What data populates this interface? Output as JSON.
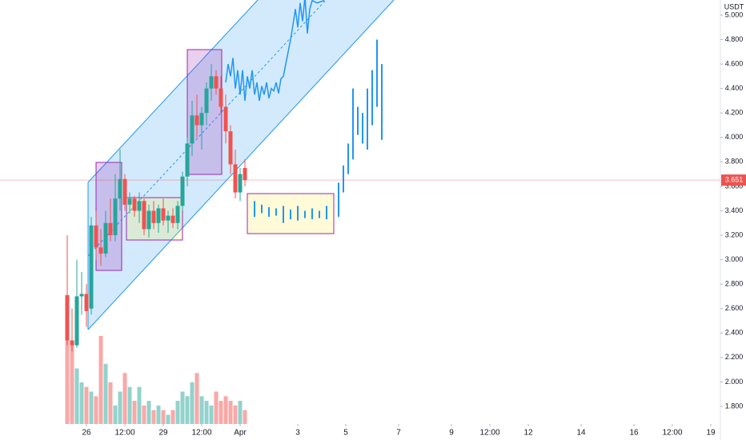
{
  "chart_data": {
    "type": "candlestick",
    "currency": "USDT",
    "last_price": 3.651,
    "ylim": [
      1.656,
      5.124
    ],
    "yticks": [
      {
        "value": 5,
        "label": "5.000"
      },
      {
        "value": 4.8,
        "label": "4.800"
      },
      {
        "value": 4.6,
        "label": "4.600"
      },
      {
        "value": 4.4,
        "label": "4.400"
      },
      {
        "value": 4.2,
        "label": "4.200"
      },
      {
        "value": 4,
        "label": "4.000"
      },
      {
        "value": 3.8,
        "label": "3.800"
      },
      {
        "value": 3.6,
        "label": "3.600"
      },
      {
        "value": 3.4,
        "label": "3.400"
      },
      {
        "value": 3.2,
        "label": "3.200"
      },
      {
        "value": 3,
        "label": "3.000"
      },
      {
        "value": 2.8,
        "label": "2.800"
      },
      {
        "value": 2.6,
        "label": "2.600"
      },
      {
        "value": 2.4,
        "label": "2.400"
      },
      {
        "value": 2.2,
        "label": "2.200"
      },
      {
        "value": 2,
        "label": "2.000"
      },
      {
        "value": 1.8,
        "label": "1.800"
      }
    ],
    "xlim": [
      0,
      150
    ],
    "xticks": [
      {
        "value": 18,
        "label": "26"
      },
      {
        "value": 26,
        "label": "12:00"
      },
      {
        "value": 34,
        "label": "29"
      },
      {
        "value": 42,
        "label": "12:00"
      },
      {
        "value": 50,
        "label": "Apr"
      },
      {
        "value": 62,
        "label": "3"
      },
      {
        "value": 72,
        "label": "5"
      },
      {
        "value": 83,
        "label": "7"
      },
      {
        "value": 94,
        "label": "9"
      },
      {
        "value": 102,
        "label": "12:00"
      },
      {
        "value": 110,
        "label": "12"
      },
      {
        "value": 121,
        "label": "14"
      },
      {
        "value": 132,
        "label": "16"
      },
      {
        "value": 140,
        "label": "12:00"
      },
      {
        "value": 148,
        "label": "19"
      }
    ],
    "up_color": "#26a69a",
    "down_color": "#ef5350",
    "x": [
      14,
      15,
      16,
      17,
      18,
      19,
      20,
      21,
      22,
      23,
      24,
      25,
      26,
      27,
      28,
      29,
      30,
      31,
      32,
      33,
      34,
      35,
      36,
      37,
      38,
      39,
      40,
      41,
      42,
      43,
      44,
      45,
      46,
      47,
      48,
      49,
      50,
      51
    ],
    "ohlc": [
      [
        2.71,
        3.2,
        2.3,
        2.34
      ],
      [
        2.34,
        2.6,
        2.25,
        2.3
      ],
      [
        2.3,
        3.0,
        2.28,
        2.7
      ],
      [
        2.7,
        2.9,
        2.55,
        2.72
      ],
      [
        2.72,
        2.8,
        2.45,
        2.58
      ],
      [
        2.6,
        3.35,
        2.55,
        3.28
      ],
      [
        3.28,
        3.4,
        3.0,
        3.1
      ],
      [
        3.1,
        3.25,
        2.95,
        3.05
      ],
      [
        3.05,
        3.4,
        3.02,
        3.3
      ],
      [
        3.3,
        3.5,
        3.15,
        3.2
      ],
      [
        3.2,
        3.7,
        3.15,
        3.5
      ],
      [
        3.5,
        3.9,
        3.4,
        3.66
      ],
      [
        3.66,
        3.7,
        3.4,
        3.45
      ],
      [
        3.45,
        3.55,
        3.38,
        3.5
      ],
      [
        3.5,
        3.52,
        3.35,
        3.4
      ],
      [
        3.4,
        3.55,
        3.3,
        3.48
      ],
      [
        3.48,
        3.5,
        3.2,
        3.25
      ],
      [
        3.25,
        3.45,
        3.18,
        3.4
      ],
      [
        3.4,
        3.48,
        3.25,
        3.3
      ],
      [
        3.3,
        3.45,
        3.22,
        3.42
      ],
      [
        3.42,
        3.5,
        3.28,
        3.32
      ],
      [
        3.32,
        3.4,
        3.22,
        3.36
      ],
      [
        3.36,
        3.42,
        3.26,
        3.3
      ],
      [
        3.3,
        3.48,
        3.25,
        3.44
      ],
      [
        3.44,
        3.72,
        3.4,
        3.68
      ],
      [
        3.68,
        4.0,
        3.6,
        3.95
      ],
      [
        3.95,
        4.3,
        3.85,
        4.18
      ],
      [
        4.18,
        4.35,
        4.0,
        4.1
      ],
      [
        4.1,
        4.25,
        3.9,
        4.2
      ],
      [
        4.2,
        4.45,
        4.1,
        4.4
      ],
      [
        4.4,
        4.6,
        4.3,
        4.5
      ],
      [
        4.5,
        4.55,
        4.35,
        4.4
      ],
      [
        4.4,
        4.5,
        4.2,
        4.25
      ],
      [
        4.25,
        4.35,
        3.95,
        4.05
      ],
      [
        4.05,
        4.1,
        3.7,
        3.78
      ],
      [
        3.78,
        3.9,
        3.5,
        3.55
      ],
      [
        3.55,
        3.75,
        3.48,
        3.7
      ],
      [
        3.75,
        3.82,
        3.6,
        3.651
      ]
    ],
    "volume": [
      95,
      85,
      60,
      45,
      40,
      35,
      30,
      95,
      65,
      45,
      20,
      35,
      55,
      40,
      25,
      40,
      20,
      25,
      15,
      20,
      15,
      10,
      15,
      25,
      35,
      30,
      45,
      55,
      30,
      25,
      20,
      35,
      25,
      30,
      25,
      20,
      25,
      15
    ],
    "projection": {
      "color": "#2196f3",
      "x": [
        53,
        54.5,
        56,
        57.5,
        59,
        60.5,
        62,
        63.5,
        65,
        66.5,
        68,
        70.5,
        71.5,
        72.5,
        73.5,
        74.5,
        75.5,
        76.5,
        77.5,
        78.5,
        79.5
      ],
      "low": [
        3.35,
        3.38,
        3.35,
        3.36,
        3.3,
        3.33,
        3.32,
        3.34,
        3.33,
        3.34,
        3.33,
        3.35,
        3.55,
        3.7,
        3.82,
        4.02,
        3.95,
        3.9,
        4.1,
        4.25,
        3.98
      ],
      "high": [
        3.48,
        3.45,
        3.43,
        3.42,
        3.44,
        3.41,
        3.44,
        3.4,
        3.42,
        3.4,
        3.44,
        3.63,
        3.77,
        3.95,
        4.4,
        4.25,
        4.2,
        4.4,
        4.55,
        4.8,
        4.6
      ]
    },
    "path_line": {
      "color": "#2196f3",
      "x": [
        47,
        47.5,
        48,
        48.5,
        49,
        49.5,
        50,
        50.5,
        51,
        51.5,
        52,
        52.5,
        53,
        53.5,
        54,
        54.5,
        55,
        55.5,
        56,
        56.5,
        57,
        57.5,
        58,
        58.5,
        59,
        59.5,
        60,
        60.5,
        61,
        61.5,
        62,
        62.5,
        63,
        63.5,
        64,
        64.5,
        65,
        66,
        67.5
      ],
      "values": [
        4.45,
        4.6,
        4.5,
        4.65,
        4.4,
        4.55,
        4.35,
        4.55,
        4.3,
        4.5,
        4.4,
        4.55,
        4.35,
        4.45,
        4.3,
        4.42,
        4.35,
        4.45,
        4.32,
        4.4,
        4.38,
        4.45,
        4.36,
        4.48,
        4.5,
        4.6,
        4.7,
        4.8,
        4.92,
        5.05,
        4.9,
        5.1,
        4.95,
        5.15,
        4.85,
        5.05,
        5.12,
        5.1,
        5.12
      ]
    }
  }
}
